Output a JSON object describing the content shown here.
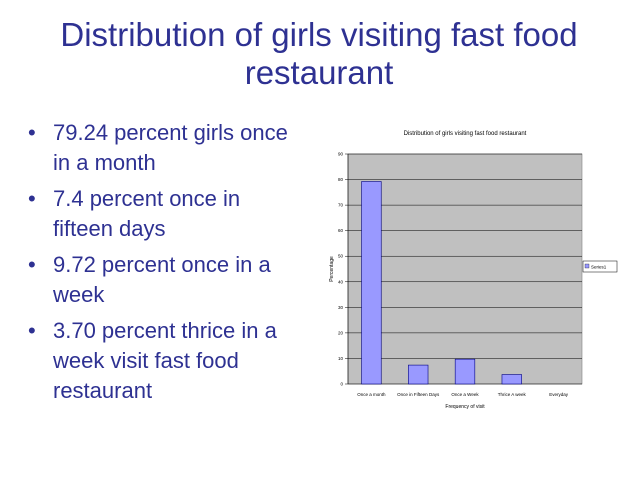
{
  "slide": {
    "title_line1": "Distribution of girls visiting fast food",
    "title_line2": "restaurant",
    "bullets": [
      "79.24 percent girls once in a month",
      "7.4 percent  once in fifteen days",
      " 9.72 percent once in a week",
      " 3.70 percent thrice in a week visit fast food restaurant"
    ]
  },
  "chart_data": {
    "type": "bar",
    "title": "Distribution of girls visiting fast food restaurant",
    "xlabel": "Frequency of visit",
    "ylabel": "Percentage",
    "categories": [
      "Once a month",
      "Once in Fifteen Days",
      "Once a Week",
      "Thrice A week",
      "Everyday"
    ],
    "series": [
      {
        "name": "Series1",
        "values": [
          79.24,
          7.4,
          9.72,
          3.7,
          0
        ]
      }
    ],
    "ylim": [
      0,
      90
    ],
    "yticks": [
      "0",
      "10",
      "20",
      "30",
      "40",
      "50",
      "60",
      "70",
      "80",
      "90"
    ],
    "grid": true,
    "legend": "right",
    "colors": {
      "bar": "#9999ff",
      "plot_bg": "#c0c0c0",
      "bar_stroke": "#000080"
    }
  }
}
